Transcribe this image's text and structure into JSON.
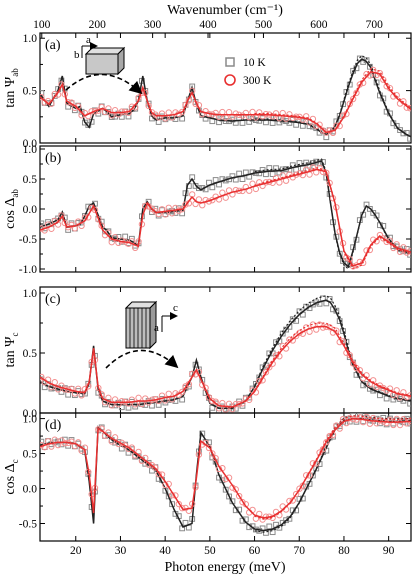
{
  "chart_data": {
    "type": "line",
    "top_axis": {
      "label": "Wavenumber (cm⁻¹)",
      "ticks": [
        "100",
        "200",
        "300",
        "400",
        "500",
        "600",
        "700"
      ],
      "values": [
        100,
        200,
        300,
        400,
        500,
        600,
        700
      ]
    },
    "bottom_axis": {
      "label": "Photon energy (meV)",
      "ticks": [
        "20",
        "30",
        "40",
        "50",
        "60",
        "70",
        "80",
        "90"
      ],
      "values": [
        20,
        30,
        40,
        50,
        60,
        70,
        80,
        90
      ],
      "xlim": [
        12,
        95
      ]
    },
    "legend": {
      "position": "top-right of panel (a)",
      "entries": [
        {
          "name": "10 K",
          "marker": "square",
          "color": "#808080"
        },
        {
          "name": "300 K",
          "marker": "circle",
          "color": "#e83030"
        }
      ]
    },
    "colors": {
      "line_10K": "#222222",
      "line_300K": "#e83030",
      "points_10K": "#8a8a8a",
      "points_300K": "#f39090"
    },
    "panels": [
      {
        "label": "(a)",
        "ylabel_base": "tan Ψ",
        "ylabel_sub": "ab",
        "yticks": [
          "0.0",
          "0.5",
          "1.0"
        ],
        "ytick_values": [
          0.0,
          0.5,
          1.0
        ],
        "ylim": [
          0,
          1.05
        ],
        "series": [
          {
            "name": "10 K",
            "x": [
              12,
              14,
              16,
              17,
              18,
              20,
              21,
              22,
              23,
              24,
              26,
              27,
              28,
              30,
              32,
              33,
              34,
              35,
              36,
              37,
              38,
              40,
              42,
              44,
              45,
              46,
              47,
              48,
              50,
              52,
              55,
              58,
              60,
              63,
              66,
              69,
              72,
              74,
              75,
              76,
              77,
              78,
              79,
              80,
              81,
              82,
              83,
              84,
              85,
              86,
              87,
              88,
              90,
              92,
              94,
              95
            ],
            "y": [
              0.47,
              0.35,
              0.5,
              0.64,
              0.38,
              0.33,
              0.35,
              0.2,
              0.15,
              0.28,
              0.33,
              0.3,
              0.25,
              0.27,
              0.28,
              0.32,
              0.4,
              0.64,
              0.4,
              0.26,
              0.22,
              0.24,
              0.24,
              0.26,
              0.4,
              0.53,
              0.37,
              0.26,
              0.24,
              0.22,
              0.21,
              0.22,
              0.22,
              0.22,
              0.21,
              0.2,
              0.18,
              0.13,
              0.1,
              0.08,
              0.1,
              0.16,
              0.26,
              0.4,
              0.54,
              0.66,
              0.76,
              0.8,
              0.78,
              0.72,
              0.6,
              0.48,
              0.28,
              0.14,
              0.08,
              0.06
            ]
          },
          {
            "name": "300 K",
            "x": [
              12,
              14,
              16,
              17,
              18,
              20,
              22,
              24,
              26,
              28,
              30,
              32,
              34,
              35,
              36,
              37,
              38,
              40,
              42,
              44,
              45,
              46,
              47,
              48,
              50,
              52,
              55,
              58,
              60,
              63,
              66,
              69,
              72,
              74,
              76,
              78,
              80,
              82,
              84,
              86,
              88,
              90,
              92,
              95
            ],
            "y": [
              0.44,
              0.37,
              0.48,
              0.56,
              0.4,
              0.35,
              0.26,
              0.3,
              0.33,
              0.29,
              0.29,
              0.3,
              0.4,
              0.53,
              0.4,
              0.29,
              0.26,
              0.26,
              0.27,
              0.3,
              0.4,
              0.48,
              0.38,
              0.3,
              0.28,
              0.27,
              0.27,
              0.27,
              0.27,
              0.27,
              0.26,
              0.25,
              0.23,
              0.18,
              0.1,
              0.12,
              0.25,
              0.42,
              0.58,
              0.68,
              0.66,
              0.52,
              0.42,
              0.32
            ]
          }
        ]
      },
      {
        "label": "(b)",
        "ylabel_base": "cos Δ",
        "ylabel_sub": "ab",
        "yticks": [
          "-1.0",
          "-0.5",
          "0.0",
          "0.5",
          "1.0"
        ],
        "ytick_values": [
          -1.0,
          -0.5,
          0.0,
          0.5,
          1.0
        ],
        "ylim": [
          -1.05,
          1.05
        ],
        "series": [
          {
            "name": "10 K",
            "x": [
              12,
              14,
              16,
              17,
              18,
              20,
              21,
              22,
              23,
              24,
              26,
              27,
              28,
              30,
              32,
              33,
              34,
              35,
              36,
              37,
              38,
              40,
              42,
              44,
              45,
              46,
              47,
              48,
              50,
              52,
              55,
              58,
              60,
              63,
              66,
              69,
              72,
              74,
              75,
              76,
              77,
              78,
              79,
              80,
              81,
              82,
              83,
              84,
              85,
              86,
              87,
              88,
              90,
              92,
              94,
              95
            ],
            "y": [
              -0.3,
              -0.25,
              -0.18,
              -0.05,
              -0.3,
              -0.28,
              -0.25,
              -0.12,
              0.05,
              0.1,
              -0.3,
              -0.36,
              -0.48,
              -0.5,
              -0.52,
              -0.56,
              -0.62,
              0.0,
              0.12,
              0.0,
              -0.06,
              -0.06,
              -0.04,
              -0.02,
              0.4,
              0.5,
              0.38,
              0.32,
              0.4,
              0.45,
              0.52,
              0.56,
              0.6,
              0.63,
              0.64,
              0.7,
              0.74,
              0.78,
              0.8,
              0.6,
              0.1,
              -0.4,
              -0.72,
              -0.9,
              -0.96,
              -0.7,
              -0.4,
              -0.1,
              0.05,
              0.0,
              -0.1,
              -0.22,
              -0.5,
              -0.66,
              -0.7,
              -0.72
            ]
          },
          {
            "name": "300 K",
            "x": [
              12,
              14,
              16,
              17,
              18,
              20,
              22,
              24,
              26,
              28,
              30,
              32,
              34,
              35,
              36,
              37,
              38,
              40,
              42,
              44,
              45,
              46,
              47,
              48,
              50,
              52,
              55,
              58,
              60,
              63,
              66,
              69,
              72,
              74,
              76,
              78,
              80,
              82,
              84,
              86,
              88,
              90,
              92,
              95
            ],
            "y": [
              -0.35,
              -0.3,
              -0.22,
              -0.12,
              -0.3,
              -0.28,
              -0.2,
              0.05,
              -0.35,
              -0.5,
              -0.54,
              -0.56,
              -0.62,
              -0.1,
              0.1,
              0.0,
              -0.06,
              -0.04,
              -0.02,
              0.0,
              0.1,
              0.2,
              0.12,
              0.1,
              0.14,
              0.2,
              0.28,
              0.33,
              0.38,
              0.44,
              0.5,
              0.56,
              0.62,
              0.66,
              0.62,
              0.1,
              -0.7,
              -0.95,
              -0.9,
              -0.6,
              -0.45,
              -0.55,
              -0.65,
              -0.72
            ]
          }
        ]
      },
      {
        "label": "(c)",
        "ylabel_base": "tan Ψ",
        "ylabel_sub": "c",
        "yticks": [
          "0.0",
          "0.5",
          "1.0"
        ],
        "ytick_values": [
          0.0,
          0.5,
          1.0
        ],
        "ylim": [
          0,
          1.05
        ],
        "series": [
          {
            "name": "10 K",
            "x": [
              12,
              14,
              16,
              18,
              20,
              22,
              23,
              24,
              25,
              26,
              28,
              30,
              32,
              34,
              36,
              38,
              40,
              42,
              44,
              46,
              47,
              48,
              50,
              52,
              55,
              58,
              60,
              62,
              64,
              66,
              68,
              70,
              72,
              74,
              76,
              77,
              78,
              79,
              80,
              81,
              82,
              84,
              86,
              88,
              90,
              92,
              95
            ],
            "y": [
              0.26,
              0.22,
              0.2,
              0.18,
              0.17,
              0.16,
              0.25,
              0.56,
              0.2,
              0.1,
              0.07,
              0.07,
              0.07,
              0.07,
              0.08,
              0.09,
              0.1,
              0.11,
              0.14,
              0.3,
              0.44,
              0.3,
              0.08,
              0.04,
              0.04,
              0.1,
              0.22,
              0.38,
              0.52,
              0.64,
              0.74,
              0.82,
              0.88,
              0.92,
              0.94,
              0.92,
              0.86,
              0.78,
              0.66,
              0.52,
              0.4,
              0.26,
              0.2,
              0.17,
              0.14,
              0.12,
              0.1
            ]
          },
          {
            "name": "300 K",
            "x": [
              12,
              14,
              16,
              18,
              20,
              22,
              23,
              24,
              25,
              26,
              28,
              30,
              32,
              34,
              36,
              38,
              40,
              42,
              44,
              46,
              47,
              48,
              50,
              52,
              55,
              58,
              60,
              62,
              64,
              66,
              68,
              70,
              72,
              74,
              76,
              78,
              80,
              82,
              84,
              86,
              88,
              90,
              92,
              95
            ],
            "y": [
              0.3,
              0.25,
              0.22,
              0.2,
              0.18,
              0.17,
              0.26,
              0.54,
              0.22,
              0.12,
              0.09,
              0.09,
              0.09,
              0.1,
              0.1,
              0.11,
              0.13,
              0.14,
              0.18,
              0.3,
              0.36,
              0.28,
              0.12,
              0.06,
              0.05,
              0.1,
              0.18,
              0.3,
              0.42,
              0.52,
              0.6,
              0.66,
              0.7,
              0.72,
              0.72,
              0.68,
              0.56,
              0.42,
              0.32,
              0.26,
              0.22,
              0.19,
              0.16,
              0.14
            ]
          }
        ]
      },
      {
        "label": "(d)",
        "ylabel_base": "cos Δ",
        "ylabel_sub": "c",
        "yticks": [
          "-0.5",
          "0.0",
          "0.5",
          "1.0"
        ],
        "ytick_values": [
          -0.5,
          0.0,
          0.5,
          1.0
        ],
        "ylim": [
          -0.75,
          1.08
        ],
        "series": [
          {
            "name": "10 K",
            "x": [
              12,
              14,
              16,
              18,
              20,
              22,
              23,
              24,
              25,
              26,
              28,
              30,
              32,
              34,
              36,
              38,
              40,
              42,
              44,
              46,
              47,
              48,
              50,
              52,
              55,
              58,
              60,
              62,
              64,
              66,
              68,
              70,
              72,
              74,
              76,
              78,
              80,
              82,
              84,
              86,
              88,
              90,
              92,
              95
            ],
            "y": [
              0.62,
              0.65,
              0.66,
              0.66,
              0.64,
              0.55,
              0.1,
              -0.5,
              0.88,
              0.82,
              0.7,
              0.62,
              0.55,
              0.45,
              0.35,
              0.25,
              0.0,
              -0.3,
              -0.55,
              -0.5,
              0.2,
              0.8,
              0.6,
              0.2,
              -0.2,
              -0.48,
              -0.58,
              -0.6,
              -0.58,
              -0.52,
              -0.4,
              -0.2,
              0.05,
              0.3,
              0.58,
              0.84,
              0.97,
              1.0,
              1.0,
              0.98,
              0.97,
              0.96,
              0.96,
              0.97
            ]
          },
          {
            "name": "300 K",
            "x": [
              12,
              14,
              16,
              18,
              20,
              22,
              23,
              24,
              25,
              26,
              28,
              30,
              32,
              34,
              36,
              38,
              40,
              42,
              44,
              46,
              47,
              48,
              50,
              52,
              55,
              58,
              60,
              62,
              64,
              66,
              68,
              70,
              72,
              74,
              76,
              78,
              80,
              82,
              84,
              86,
              88,
              90,
              92,
              95
            ],
            "y": [
              0.6,
              0.64,
              0.66,
              0.66,
              0.64,
              0.56,
              0.2,
              -0.35,
              0.86,
              0.82,
              0.72,
              0.65,
              0.58,
              0.48,
              0.38,
              0.28,
              0.1,
              -0.1,
              -0.3,
              -0.28,
              0.15,
              0.68,
              0.58,
              0.32,
              0.05,
              -0.25,
              -0.38,
              -0.42,
              -0.4,
              -0.32,
              -0.2,
              -0.02,
              0.2,
              0.42,
              0.66,
              0.84,
              0.96,
              1.0,
              0.99,
              0.97,
              0.96,
              0.95,
              0.95,
              0.96
            ]
          }
        ]
      }
    ]
  }
}
